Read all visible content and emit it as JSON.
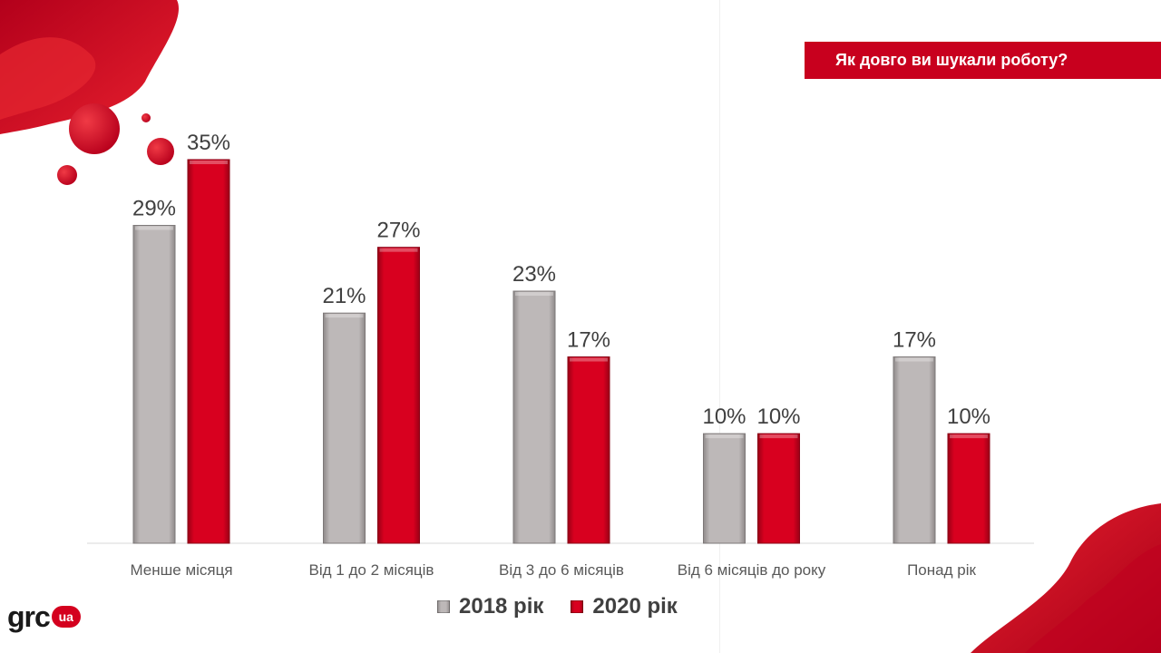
{
  "title": "Як довго ви шукали роботу?",
  "logo": {
    "text": "grc",
    "badge": "ua"
  },
  "colors": {
    "series_2018": "#b7b2b2",
    "series_2020": "#d4001e",
    "brand": "#c8001e"
  },
  "chart_data": {
    "type": "bar",
    "categories": [
      "Менше  місяця",
      "Від 1 до 2 місяців",
      "Від 3 до 6 місяців",
      "Від 6 місяців до року",
      "Понад рік"
    ],
    "series": [
      {
        "name": "2018 рік",
        "values": [
          29,
          21,
          23,
          10,
          17
        ],
        "labels": [
          "29%",
          "21%",
          "23%",
          "10%",
          "17%"
        ]
      },
      {
        "name": "2020 рік",
        "values": [
          35,
          27,
          17,
          10,
          10
        ],
        "labels": [
          "35%",
          "27%",
          "17%",
          "10%",
          "10%"
        ]
      }
    ],
    "ylim": [
      0,
      35
    ],
    "legend_position": "bottom",
    "grid": false
  }
}
